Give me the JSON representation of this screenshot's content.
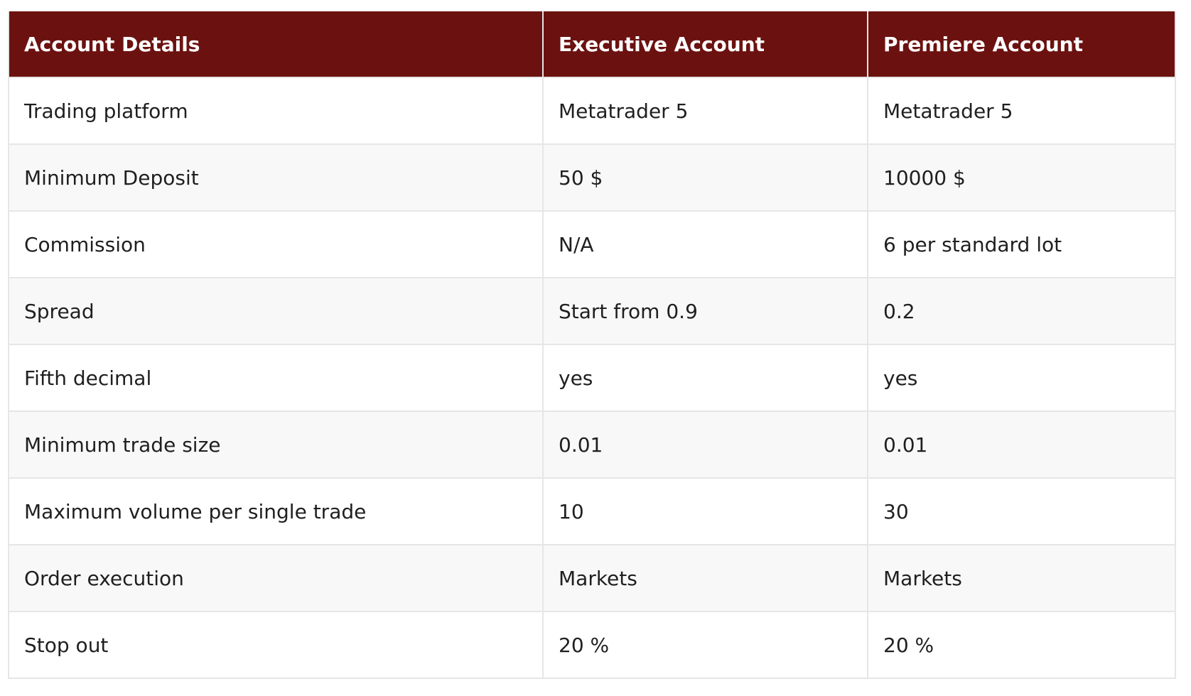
{
  "table": {
    "headers": [
      "Account Details",
      "Executive Account",
      "Premiere Account"
    ],
    "rows": [
      [
        "Trading platform",
        "Metatrader 5",
        "Metatrader 5"
      ],
      [
        "Minimum Deposit",
        "50 $",
        "10000 $"
      ],
      [
        "Commission",
        "N/A",
        "6 per standard lot"
      ],
      [
        "Spread",
        "Start from 0.9",
        "0.2"
      ],
      [
        "Fifth decimal",
        "yes",
        "yes"
      ],
      [
        "Minimum trade size",
        "0.01",
        "0.01"
      ],
      [
        "Maximum volume per single trade",
        "10",
        "30"
      ],
      [
        "Order execution",
        "Markets",
        "Markets"
      ],
      [
        "Stop out",
        "20 %",
        "20 %"
      ]
    ]
  },
  "colors": {
    "header_bg": "#6b1210",
    "header_text": "#ffffff",
    "border": "#e6e6e6",
    "row_alt": "#f8f8f8"
  }
}
